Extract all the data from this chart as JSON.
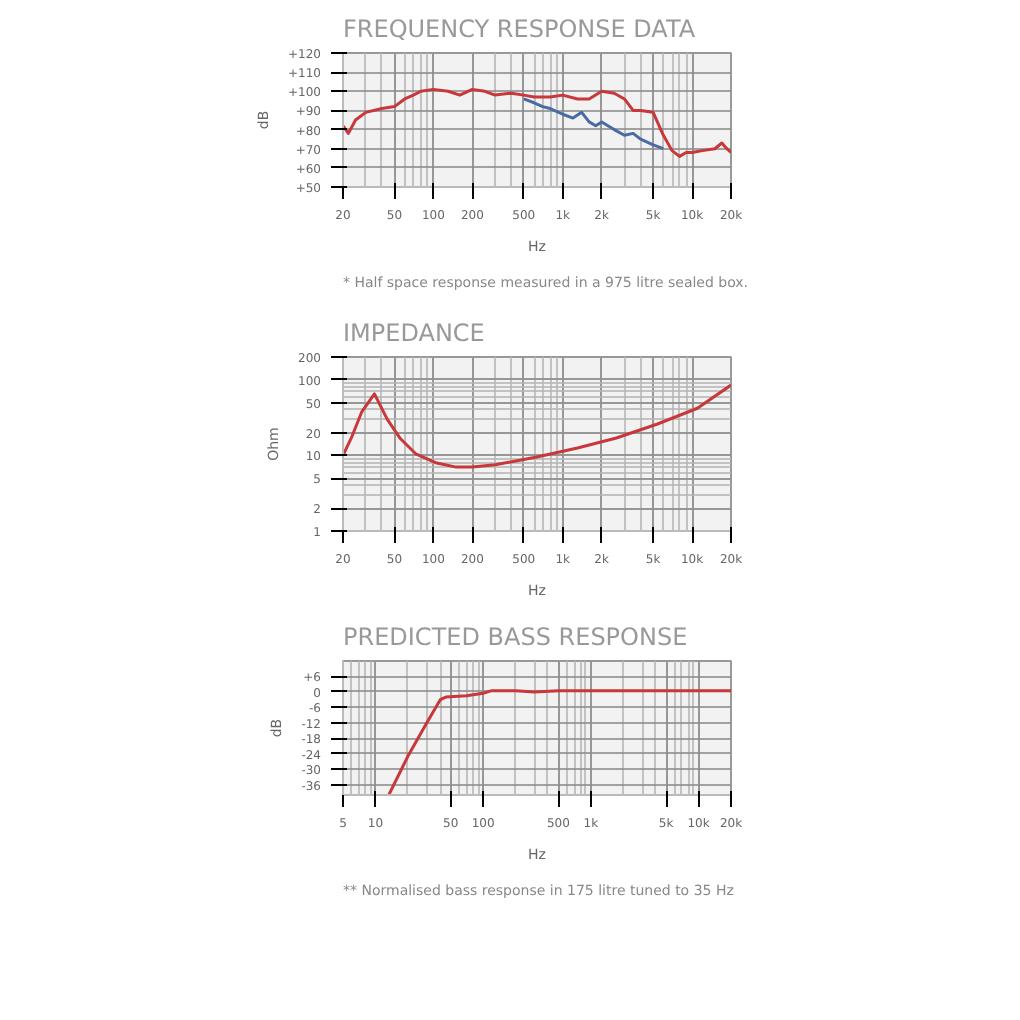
{
  "chart_data": [
    {
      "type": "line",
      "title": "FREQUENCY RESPONSE DATA",
      "xlabel": "Hz",
      "ylabel": "dB",
      "log": "x",
      "grid": true,
      "xlim": [
        20,
        20000
      ],
      "ylim": [
        50,
        120
      ],
      "xticks": [
        20,
        50,
        100,
        200,
        500,
        {
          "value": 1000,
          "label": "1k"
        },
        {
          "value": 2000,
          "label": "2k"
        },
        {
          "value": 5000,
          "label": "5k"
        },
        {
          "value": 10000,
          "label": "10k"
        },
        {
          "value": 20000,
          "label": "20k"
        }
      ],
      "yticks": [
        {
          "value": 50,
          "label": "+50"
        },
        {
          "value": 60,
          "label": "+60"
        },
        {
          "value": 70,
          "label": "+70"
        },
        {
          "value": 80,
          "label": "+80"
        },
        {
          "value": 90,
          "label": "+90"
        },
        {
          "value": 100,
          "label": "+100"
        },
        {
          "value": 110,
          "label": "+110"
        },
        {
          "value": 120,
          "label": "+120"
        }
      ],
      "series": [
        {
          "color": "#4a6aa5",
          "x": [
            500,
            600,
            700,
            800,
            1000,
            1200,
            1400,
            1600,
            1800,
            2000,
            2500,
            3000,
            3500,
            4000,
            5000,
            6000
          ],
          "values": [
            96,
            94,
            92,
            91,
            88,
            86,
            89,
            84,
            82,
            84,
            80,
            77,
            78,
            75,
            72,
            70
          ]
        },
        {
          "color": "#c8373a",
          "x": [
            20,
            22,
            25,
            30,
            40,
            50,
            60,
            70,
            80,
            100,
            130,
            160,
            200,
            250,
            300,
            400,
            500,
            600,
            800,
            1000,
            1300,
            1600,
            2000,
            2500,
            3000,
            3500,
            4000,
            5000,
            6000,
            7000,
            8000,
            9000,
            10000,
            12000,
            15000,
            17000,
            18000,
            20000
          ],
          "values": [
            82,
            78,
            85,
            89,
            91,
            92,
            96,
            98,
            100,
            101,
            100,
            98,
            101,
            100,
            98,
            99,
            98,
            97,
            97,
            98,
            96,
            96,
            100,
            99,
            96,
            90,
            90,
            89,
            77,
            69,
            66,
            68,
            68,
            69,
            70,
            73,
            71,
            68
          ]
        }
      ],
      "annotations": [
        "* Half space response measured in a 975 litre sealed box."
      ]
    },
    {
      "type": "line",
      "title": "IMPEDANCE",
      "xlabel": "Hz",
      "ylabel": "Ohm",
      "log": "xy",
      "grid": true,
      "xlim": [
        20,
        20000
      ],
      "ylim": [
        1,
        200
      ],
      "xticks": [
        20,
        50,
        100,
        200,
        500,
        {
          "value": 1000,
          "label": "1k"
        },
        {
          "value": 2000,
          "label": "2k"
        },
        {
          "value": 5000,
          "label": "5k"
        },
        {
          "value": 10000,
          "label": "10k"
        },
        {
          "value": 20000,
          "label": "20k"
        }
      ],
      "yticks": [
        1,
        2,
        5,
        10,
        20,
        50,
        100,
        200
      ],
      "series": [
        {
          "color": "#c8373a",
          "x": [
            20,
            23.2,
            28,
            35,
            44,
            55,
            73,
            104,
            150,
            200,
            300,
            630,
            1300,
            2600,
            5400,
            11000,
            20000
          ],
          "values": [
            10,
            17,
            38,
            65,
            30,
            17,
            10.5,
            8,
            7,
            7,
            7.5,
            9.5,
            12.5,
            17,
            26,
            42,
            85
          ]
        }
      ]
    },
    {
      "type": "line",
      "title": "PREDICTED BASS RESPONSE",
      "xlabel": "Hz",
      "ylabel": "dB",
      "log": "x",
      "grid": true,
      "xlim": [
        5,
        20000
      ],
      "ylim": [
        -40,
        12
      ],
      "xticks": [
        5,
        10,
        50,
        100,
        500,
        {
          "value": 1000,
          "label": "1k"
        },
        {
          "value": 5000,
          "label": "5k"
        },
        {
          "value": 10000,
          "label": "10k"
        },
        {
          "value": 20000,
          "label": "20k"
        }
      ],
      "yticks": [
        {
          "value": -36,
          "label": "-36"
        },
        {
          "value": -30,
          "label": "-30"
        },
        {
          "value": -24,
          "label": "-24"
        },
        {
          "value": -18,
          "label": "-18"
        },
        {
          "value": -12,
          "label": "-12"
        },
        {
          "value": -6,
          "label": "-6"
        },
        0,
        {
          "value": 6,
          "label": "+6"
        }
      ],
      "series": [
        {
          "color": "#c8373a",
          "x": [
            13.3,
            20,
            30,
            40,
            45,
            70,
            100,
            120,
            200,
            300,
            500,
            20000
          ],
          "values": [
            -40,
            -25,
            -12,
            -3,
            -2,
            -1.5,
            -0.5,
            0.5,
            0.5,
            0,
            0.5,
            0.5
          ]
        }
      ],
      "annotations": [
        "** Normalised bass response in 175 litre tuned to 35 Hz"
      ]
    }
  ]
}
